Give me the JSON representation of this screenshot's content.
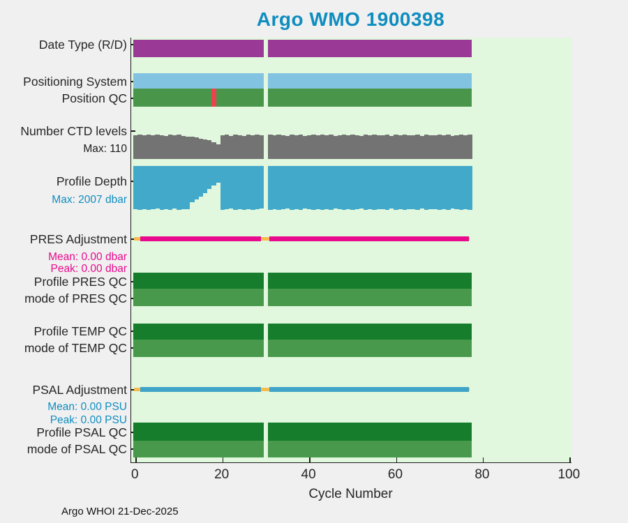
{
  "chart_data": {
    "type": "bar",
    "title": "Argo WMO 1900398",
    "xlabel": "Cycle Number",
    "footer": "Argo WHOI 21-Dec-2025",
    "xlim": [
      -1,
      100.5
    ],
    "xticks": [
      0,
      20,
      40,
      60,
      80,
      100
    ],
    "cycle_range": [
      0,
      77
    ],
    "missing_cycles": [
      30
    ],
    "plot_bg_color": "#e2f8de",
    "figure_bg_color": "#f0f0f0",
    "title_color": "#0f8dbf",
    "rows": [
      {
        "id": "date-type",
        "label": "Date Type (R/D)",
        "kind": "flag",
        "color": "#9b3a96"
      },
      {
        "id": "positioning-system",
        "label": "Positioning System",
        "kind": "flag",
        "color": "#82c3e1"
      },
      {
        "id": "position-qc",
        "label": "Position QC",
        "kind": "flag",
        "color": "#49964a",
        "flagged_cycles": [
          18
        ],
        "flag_color": "#ee4150"
      },
      {
        "id": "num-ctd-levels",
        "label": "Number CTD levels",
        "sublabels": [
          "Max: 110"
        ],
        "sublabel_color": "#1a1a1a",
        "kind": "bars-up",
        "color": "#737373",
        "ymax": 110,
        "values": [
          107,
          110,
          108,
          110,
          106,
          110,
          108,
          105,
          110,
          107,
          110,
          105,
          102,
          100,
          96,
          92,
          88,
          84,
          76,
          66,
          108,
          110,
          105,
          110,
          108,
          105,
          110,
          106,
          110,
          107,
          null,
          110,
          106,
          110,
          108,
          105,
          110,
          107,
          110,
          105,
          108,
          110,
          106,
          110,
          107,
          110,
          105,
          108,
          110,
          106,
          110,
          108,
          105,
          110,
          107,
          110,
          106,
          108,
          110,
          105,
          110,
          107,
          110,
          106,
          108,
          110,
          105,
          110,
          108,
          106,
          110,
          107,
          110,
          105,
          108,
          110,
          106,
          110
        ]
      },
      {
        "id": "profile-depth",
        "label": "Profile Depth",
        "sublabels": [
          "Max: 2007 dbar"
        ],
        "sublabel_color": "#0f8dbf",
        "kind": "bars-down",
        "color": "#42a9cb",
        "ymax": 2007,
        "unit": "dbar",
        "values": [
          1990,
          2007,
          1965,
          2007,
          1990,
          1955,
          2007,
          1985,
          2007,
          1955,
          2007,
          1990,
          1980,
          1666,
          1529,
          1392,
          1233,
          1051,
          892,
          755,
          2007,
          1990,
          1955,
          2007,
          1985,
          2007,
          1960,
          2007,
          1990,
          1955,
          null,
          2007,
          1960,
          2007,
          1990,
          1950,
          2007,
          1985,
          2007,
          1955,
          1990,
          2007,
          1960,
          2007,
          1985,
          2007,
          1950,
          1990,
          2007,
          1960,
          2007,
          1990,
          1955,
          2007,
          1985,
          2007,
          1960,
          1990,
          2007,
          1950,
          2007,
          1985,
          2007,
          1960,
          1990,
          2007,
          1955,
          2007,
          1990,
          1960,
          2007,
          1985,
          2007,
          1950,
          1990,
          2007,
          1960,
          2007
        ]
      },
      {
        "id": "pres-adjustment",
        "label": "PRES Adjustment",
        "sublabels": [
          "Mean: 0.00 dbar",
          "Peak: 0.00 dbar"
        ],
        "sublabel_color": "#e80a8c",
        "kind": "line",
        "color": "#e80a8c",
        "base_color": "#f7bc4e"
      },
      {
        "id": "profile-pres-qc",
        "label": "Profile PRES QC",
        "kind": "flag",
        "color": "#157d2c"
      },
      {
        "id": "mode-pres-qc",
        "label": "mode of PRES QC",
        "kind": "flag",
        "color": "#49994c"
      },
      {
        "id": "profile-temp-qc",
        "label": "Profile TEMP QC",
        "kind": "flag",
        "color": "#157d2c"
      },
      {
        "id": "mode-temp-qc",
        "label": "mode of TEMP QC",
        "kind": "flag",
        "color": "#49994c"
      },
      {
        "id": "psal-adjustment",
        "label": "PSAL Adjustment",
        "sublabels": [
          "Mean: 0.00 PSU",
          "Peak: 0.00 PSU"
        ],
        "sublabel_color": "#0f8dbf",
        "kind": "line",
        "color": "#3fa4c8",
        "base_color": "#f7bc4e"
      },
      {
        "id": "profile-psal-qc",
        "label": "Profile PSAL QC",
        "kind": "flag",
        "color": "#157d2c"
      },
      {
        "id": "mode-psal-qc",
        "label": "mode of PSAL QC",
        "kind": "flag",
        "color": "#49994c"
      }
    ]
  }
}
